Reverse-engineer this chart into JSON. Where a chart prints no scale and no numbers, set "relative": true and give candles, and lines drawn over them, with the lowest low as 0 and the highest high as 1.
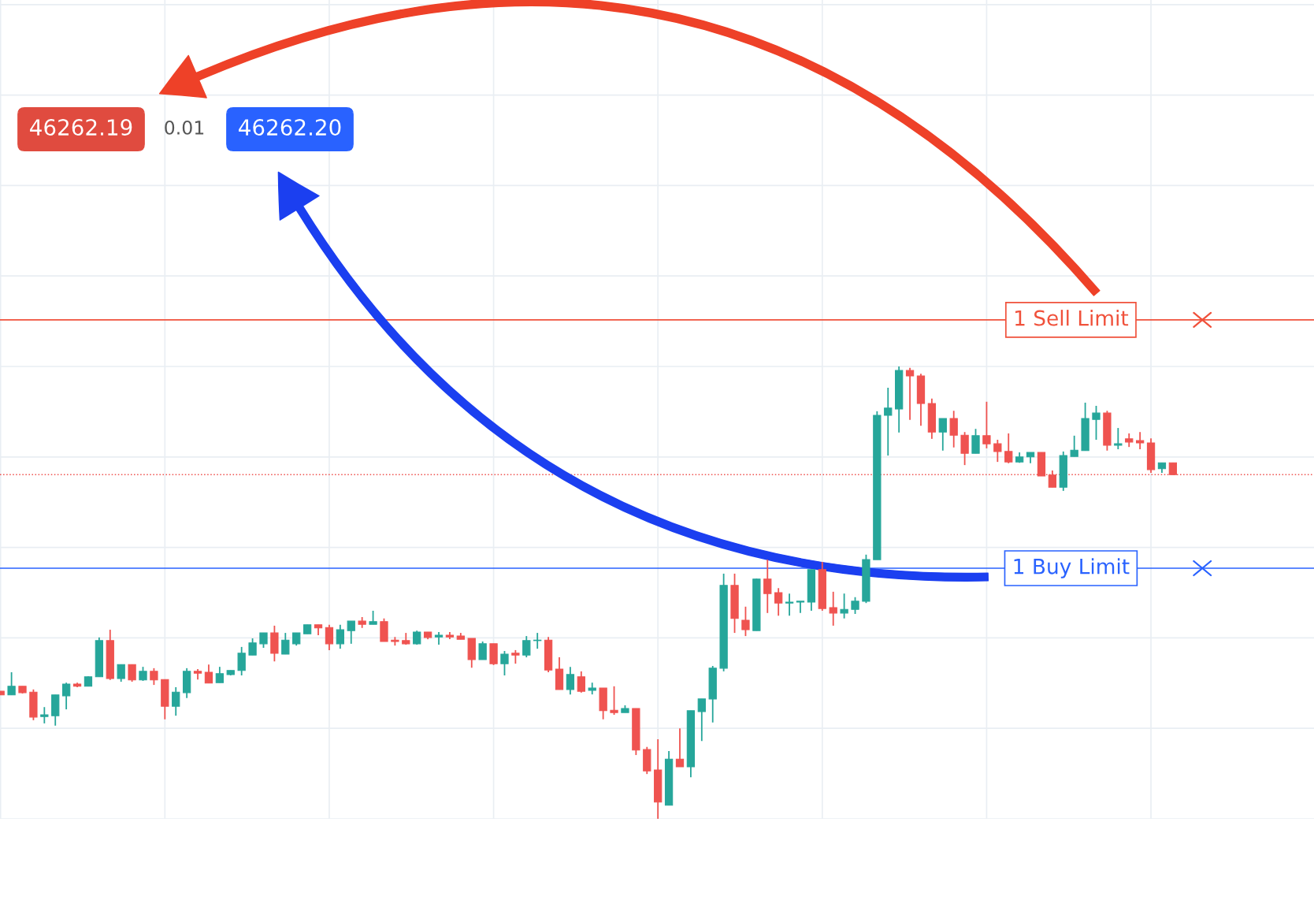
{
  "chart_data": {
    "type": "candlestick",
    "relative": true,
    "grid": true,
    "categories": [
      null,
      null,
      null,
      null,
      null,
      null,
      null,
      null,
      null,
      null,
      null,
      null,
      null,
      null,
      null,
      null,
      null,
      null,
      null,
      null,
      null,
      null,
      null,
      null,
      null,
      null,
      null,
      null,
      null,
      null,
      null,
      null,
      null,
      null,
      null,
      null,
      null,
      null,
      null,
      null,
      null,
      null,
      null,
      null,
      null,
      null,
      null,
      null,
      null,
      null,
      null,
      null,
      null,
      null,
      null,
      null,
      null,
      null,
      null,
      null,
      null,
      null,
      null,
      null,
      null,
      null,
      null,
      null,
      null,
      null,
      null,
      null,
      null,
      null,
      null,
      null,
      null,
      null,
      null,
      null,
      null,
      null,
      null,
      null,
      null,
      null,
      null,
      null,
      null,
      null,
      null,
      null,
      null,
      null,
      null,
      null,
      null,
      null,
      null,
      null,
      null,
      null,
      null,
      null,
      null,
      null,
      null,
      null
    ],
    "ohlc": [
      [
        0.282,
        0.282,
        0.274,
        0.274
      ],
      [
        0.274,
        0.324,
        0.274,
        0.293
      ],
      [
        0.293,
        0.293,
        0.277,
        0.279
      ],
      [
        0.28,
        0.286,
        0.218,
        0.225
      ],
      [
        0.226,
        0.247,
        0.211,
        0.23
      ],
      [
        0.228,
        0.274,
        0.206,
        0.274
      ],
      [
        0.272,
        0.301,
        0.242,
        0.298
      ],
      [
        0.298,
        0.301,
        0.291,
        0.293
      ],
      [
        0.293,
        0.315,
        0.293,
        0.314
      ],
      [
        0.314,
        0.401,
        0.314,
        0.394
      ],
      [
        0.394,
        0.418,
        0.307,
        0.31
      ],
      [
        0.31,
        0.341,
        0.303,
        0.341
      ],
      [
        0.341,
        0.341,
        0.303,
        0.307
      ],
      [
        0.307,
        0.336,
        0.305,
        0.326
      ],
      [
        0.326,
        0.333,
        0.296,
        0.307
      ],
      [
        0.308,
        0.308,
        0.22,
        0.249
      ],
      [
        0.249,
        0.291,
        0.228,
        0.28
      ],
      [
        0.279,
        0.333,
        0.267,
        0.326
      ],
      [
        0.326,
        0.331,
        0.308,
        0.322
      ],
      [
        0.324,
        0.341,
        0.3,
        0.3
      ],
      [
        0.301,
        0.336,
        0.301,
        0.321
      ],
      [
        0.319,
        0.328,
        0.317,
        0.328
      ],
      [
        0.328,
        0.38,
        0.317,
        0.366
      ],
      [
        0.362,
        0.399,
        0.362,
        0.389
      ],
      [
        0.387,
        0.411,
        0.378,
        0.411
      ],
      [
        0.411,
        0.427,
        0.348,
        0.366
      ],
      [
        0.364,
        0.411,
        0.364,
        0.395
      ],
      [
        0.387,
        0.411,
        0.383,
        0.411
      ],
      [
        0.409,
        0.429,
        0.409,
        0.429
      ],
      [
        0.429,
        0.429,
        0.406,
        0.422
      ],
      [
        0.423,
        0.429,
        0.373,
        0.387
      ],
      [
        0.387,
        0.429,
        0.376,
        0.418
      ],
      [
        0.416,
        0.437,
        0.387,
        0.437
      ],
      [
        0.437,
        0.446,
        0.422,
        0.43
      ],
      [
        0.43,
        0.46,
        0.43,
        0.436
      ],
      [
        0.436,
        0.443,
        0.392,
        0.392
      ],
      [
        0.395,
        0.402,
        0.383,
        0.392
      ],
      [
        0.394,
        0.411,
        0.385,
        0.387
      ],
      [
        0.387,
        0.416,
        0.385,
        0.413
      ],
      [
        0.413,
        0.413,
        0.397,
        0.401
      ],
      [
        0.402,
        0.413,
        0.385,
        0.406
      ],
      [
        0.406,
        0.413,
        0.397,
        0.402
      ],
      [
        0.404,
        0.411,
        0.397,
        0.397
      ],
      [
        0.399,
        0.399,
        0.334,
        0.352
      ],
      [
        0.352,
        0.392,
        0.352,
        0.387
      ],
      [
        0.387,
        0.387,
        0.34,
        0.343
      ],
      [
        0.343,
        0.371,
        0.317,
        0.364
      ],
      [
        0.366,
        0.373,
        0.343,
        0.362
      ],
      [
        0.362,
        0.404,
        0.357,
        0.394
      ],
      [
        0.394,
        0.411,
        0.376,
        0.395
      ],
      [
        0.395,
        0.402,
        0.324,
        0.329
      ],
      [
        0.331,
        0.357,
        0.286,
        0.286
      ],
      [
        0.286,
        0.336,
        0.275,
        0.319
      ],
      [
        0.314,
        0.326,
        0.279,
        0.282
      ],
      [
        0.284,
        0.301,
        0.275,
        0.289
      ],
      [
        0.289,
        0.289,
        0.22,
        0.239
      ],
      [
        0.24,
        0.293,
        0.23,
        0.235
      ],
      [
        0.235,
        0.251,
        0.235,
        0.244
      ],
      [
        0.244,
        0.244,
        0.141,
        0.152
      ],
      [
        0.153,
        0.159,
        0.099,
        0.106
      ],
      [
        0.108,
        0.176,
        0,
        0.037
      ],
      [
        0.03,
        0.15,
        0.03,
        0.132
      ],
      [
        0.132,
        0.2,
        0.115,
        0.115
      ],
      [
        0.115,
        0.239,
        0.092,
        0.239
      ],
      [
        0.237,
        0.265,
        0.172,
        0.265
      ],
      [
        0.265,
        0.338,
        0.213,
        0.333
      ],
      [
        0.333,
        0.542,
        0.326,
        0.516
      ],
      [
        0.516,
        0.542,
        0.411,
        0.443
      ],
      [
        0.439,
        0.469,
        0.404,
        0.418
      ],
      [
        0.416,
        0.531,
        0.416,
        0.53
      ],
      [
        0.53,
        0.573,
        0.455,
        0.498
      ],
      [
        0.5,
        0.51,
        0.449,
        0.477
      ],
      [
        0.477,
        0.498,
        0.449,
        0.479
      ],
      [
        0.479,
        0.481,
        0.455,
        0.481
      ],
      [
        0.479,
        0.551,
        0.46,
        0.551
      ],
      [
        0.551,
        0.568,
        0.46,
        0.465
      ],
      [
        0.467,
        0.502,
        0.427,
        0.455
      ],
      [
        0.455,
        0.498,
        0.443,
        0.463
      ],
      [
        0.463,
        0.49,
        0.453,
        0.481
      ],
      [
        0.481,
        0.584,
        0.477,
        0.573
      ],
      [
        0.573,
        0.901,
        0.573,
        0.892
      ],
      [
        0.892,
        0.953,
        0.803,
        0.908
      ],
      [
        0.906,
        1.0,
        0.854,
        0.991
      ],
      [
        0.991,
        0.997,
        0.882,
        0.979
      ],
      [
        0.979,
        0.984,
        0.869,
        0.918
      ],
      [
        0.918,
        0.929,
        0.84,
        0.855
      ],
      [
        0.855,
        0.885,
        0.814,
        0.885
      ],
      [
        0.885,
        0.902,
        0.821,
        0.848
      ],
      [
        0.848,
        0.855,
        0.782,
        0.808
      ],
      [
        0.808,
        0.862,
        0.808,
        0.847
      ],
      [
        0.847,
        0.922,
        0.819,
        0.829
      ],
      [
        0.829,
        0.838,
        0.789,
        0.812
      ],
      [
        0.812,
        0.852,
        0.786,
        0.789
      ],
      [
        0.789,
        0.81,
        0.787,
        0.8
      ],
      [
        0.8,
        0.81,
        0.786,
        0.81
      ],
      [
        0.81,
        0.81,
        0.758,
        0.758
      ],
      [
        0.76,
        0.77,
        0.733,
        0.733
      ],
      [
        0.733,
        0.812,
        0.725,
        0.803
      ],
      [
        0.801,
        0.847,
        0.801,
        0.815
      ],
      [
        0.814,
        0.92,
        0.814,
        0.885
      ],
      [
        0.883,
        0.913,
        0.838,
        0.897
      ],
      [
        0.897,
        0.902,
        0.814,
        0.826
      ],
      [
        0.826,
        0.864,
        0.817,
        0.829
      ],
      [
        0.84,
        0.852,
        0.822,
        0.833
      ],
      [
        0.836,
        0.855,
        0.817,
        0.831
      ],
      [
        0.831,
        0.841,
        0.765,
        0.772
      ],
      [
        0.774,
        0.787,
        0.765,
        0.787
      ],
      [
        0.787,
        0.787,
        0.76,
        0.761
      ]
    ],
    "ref_lines": [
      {
        "axis": "y",
        "value": 1.103,
        "label": "1 Sell Limit",
        "color": "#f0513b",
        "line_style": "solid"
      },
      {
        "axis": "y",
        "value": 0.554,
        "label": "1 Buy Limit",
        "color": "#2962ff",
        "line_style": "solid"
      },
      {
        "axis": "y",
        "value": 0.761,
        "label": null,
        "color": "#ef5350",
        "line_style": "dotted"
      }
    ],
    "annotations": [
      "46262.19",
      "0.01",
      "46262.20"
    ]
  }
}
